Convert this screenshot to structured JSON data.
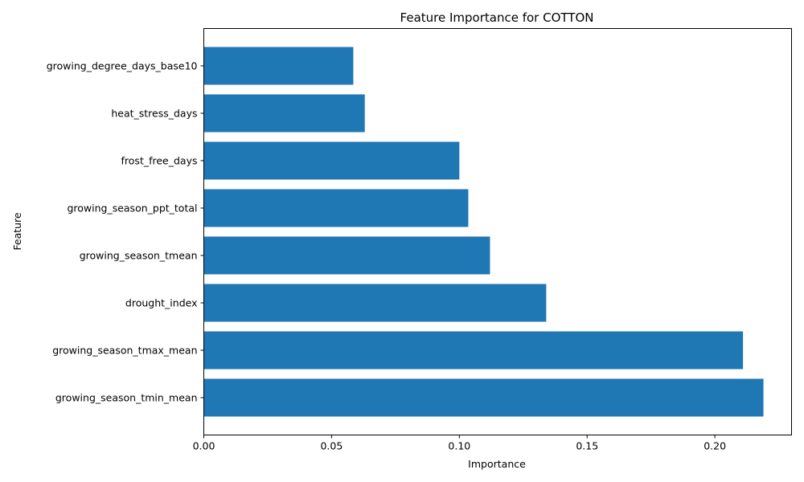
{
  "chart_data": {
    "type": "bar",
    "orientation": "horizontal",
    "title": "Feature Importance for COTTON",
    "xlabel": "Importance",
    "ylabel": "Feature",
    "xlim": [
      0,
      0.23
    ],
    "xticks": [
      0.0,
      0.05,
      0.1,
      0.15,
      0.2
    ],
    "xtick_labels": [
      "0.00",
      "0.05",
      "0.10",
      "0.15",
      "0.20"
    ],
    "categories": [
      "growing_season_tmin_mean",
      "growing_season_tmax_mean",
      "drought_index",
      "growing_season_tmean",
      "growing_season_ppt_total",
      "frost_free_days",
      "heat_stress_days",
      "growing_degree_days_base10"
    ],
    "values": [
      0.219,
      0.211,
      0.134,
      0.112,
      0.1035,
      0.1,
      0.063,
      0.0585
    ],
    "bar_color": "#1f77b4",
    "grid": false
  }
}
